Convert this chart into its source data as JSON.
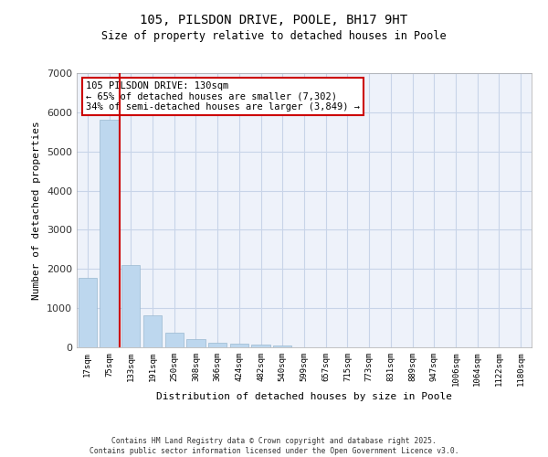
{
  "title_line1": "105, PILSDON DRIVE, POOLE, BH17 9HT",
  "title_line2": "Size of property relative to detached houses in Poole",
  "xlabel": "Distribution of detached houses by size in Poole",
  "ylabel": "Number of detached properties",
  "categories": [
    "17sqm",
    "75sqm",
    "133sqm",
    "191sqm",
    "250sqm",
    "308sqm",
    "366sqm",
    "424sqm",
    "482sqm",
    "540sqm",
    "599sqm",
    "657sqm",
    "715sqm",
    "773sqm",
    "831sqm",
    "889sqm",
    "947sqm",
    "1006sqm",
    "1064sqm",
    "1122sqm",
    "1180sqm"
  ],
  "values": [
    1780,
    5820,
    2100,
    820,
    370,
    210,
    120,
    90,
    70,
    50,
    0,
    0,
    0,
    0,
    0,
    0,
    0,
    0,
    0,
    0,
    0
  ],
  "bar_color": "#bdd7ee",
  "bar_edge_color": "#9ab8d0",
  "background_color": "#eef2fa",
  "grid_color": "#c8d4e8",
  "vline_color": "#cc0000",
  "annotation_text": "105 PILSDON DRIVE: 130sqm\n← 65% of detached houses are smaller (7,302)\n34% of semi-detached houses are larger (3,849) →",
  "annotation_box_color": "#ffffff",
  "annotation_box_edge": "#cc0000",
  "ylim": [
    0,
    7000
  ],
  "yticks": [
    0,
    1000,
    2000,
    3000,
    4000,
    5000,
    6000,
    7000
  ],
  "footer_line1": "Contains HM Land Registry data © Crown copyright and database right 2025.",
  "footer_line2": "Contains public sector information licensed under the Open Government Licence v3.0."
}
